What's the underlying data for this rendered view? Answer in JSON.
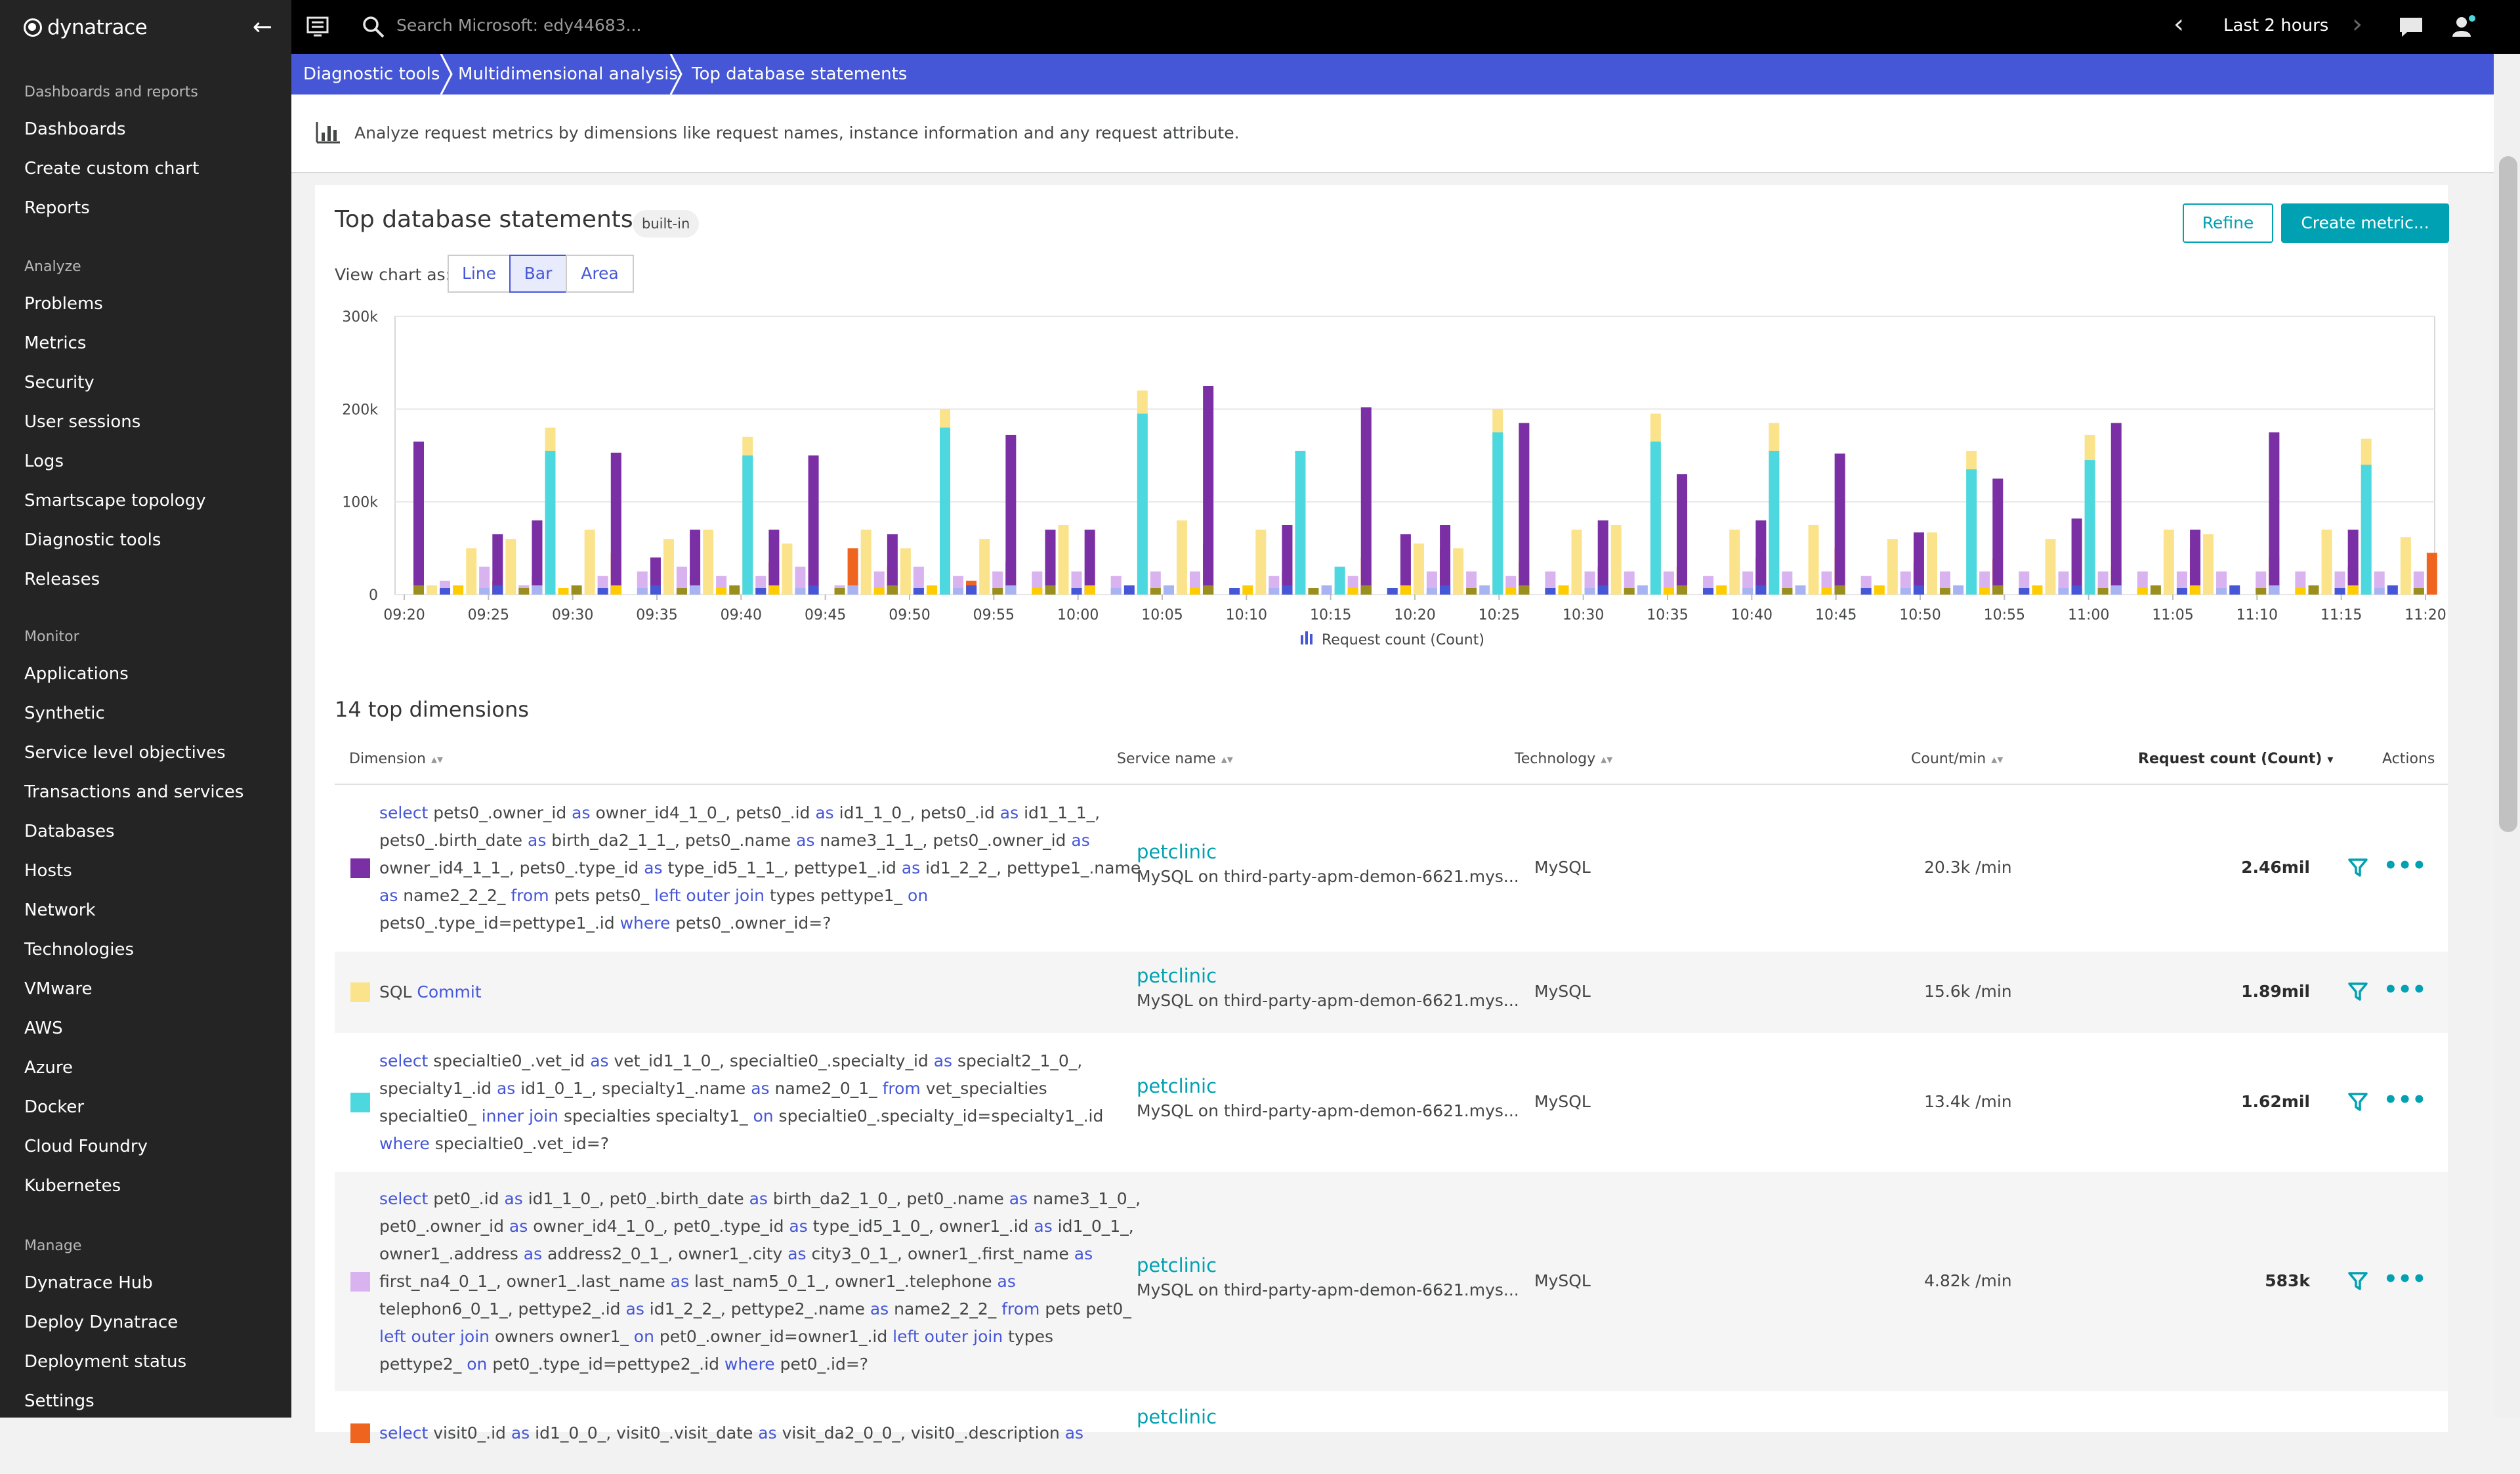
{
  "sidebar": {
    "logo": "dynatrace",
    "sections": [
      {
        "title": "Dashboards and reports",
        "items": [
          "Dashboards",
          "Create custom chart",
          "Reports"
        ]
      },
      {
        "title": "Analyze",
        "items": [
          "Problems",
          "Metrics",
          "Security",
          "User sessions",
          "Logs",
          "Smartscape topology",
          "Diagnostic tools",
          "Releases"
        ]
      },
      {
        "title": "Monitor",
        "items": [
          "Applications",
          "Synthetic",
          "Service level objectives",
          "Transactions and services",
          "Databases",
          "Hosts",
          "Network",
          "Technologies",
          "VMware",
          "AWS",
          "Azure",
          "Docker",
          "Cloud Foundry",
          "Kubernetes"
        ]
      },
      {
        "title": "Manage",
        "items": [
          "Dynatrace Hub",
          "Deploy Dynatrace",
          "Deployment status",
          "Settings"
        ]
      }
    ]
  },
  "topbar": {
    "search_placeholder": "Search Microsoft: edy44683...",
    "timeframe": "Last 2 hours"
  },
  "breadcrumb": [
    "Diagnostic tools",
    "Multidimensional analysis",
    "Top database statements"
  ],
  "info": "Analyze request metrics by dimensions like request names, instance information and any request attribute.",
  "card": {
    "title": "Top database statements",
    "badge": "built-in",
    "refine_label": "Refine",
    "create_label": "Create metric...",
    "view_label": "View chart as:",
    "view_options": [
      "Line",
      "Bar",
      "Area"
    ],
    "view_selected": "Bar"
  },
  "colors": {
    "purple": "#7b2fa5",
    "yellow": "#fbe38c",
    "cyan": "#4dd8e0",
    "lavender": "#d9b3f0",
    "orange": "#ef651f",
    "blue": "#4556d7",
    "lightblue": "#a8b4f2",
    "gold": "#ffcc00",
    "olive": "#9a8f1e",
    "teal": "#00a1b2",
    "lightpurple": "#b98fd9",
    "gray": "#c9c9c9",
    "peach": "#f7b58a",
    "green": "#54c27d"
  },
  "chart_data": {
    "type": "bar",
    "stacked": false,
    "y_ticks": [
      "0",
      "100k",
      "200k",
      "300k"
    ],
    "ylim": [
      0,
      300000
    ],
    "x_ticks": [
      "09:20",
      "09:25",
      "09:30",
      "09:35",
      "09:40",
      "09:45",
      "09:50",
      "09:55",
      "10:00",
      "10:05",
      "10:10",
      "10:15",
      "10:20",
      "10:25",
      "10:30",
      "10:35",
      "10:40",
      "10:45",
      "10:50",
      "10:55",
      "11:00",
      "11:05",
      "11:10",
      "11:15",
      "11:20"
    ],
    "legend": "Request count (Count)",
    "groups": [
      {
        "p": 165000,
        "y": 10000,
        "c": 0,
        "l": 15000,
        "o": 0
      },
      {
        "p": 0,
        "y": 50000,
        "c": 0,
        "l": 30000,
        "o": 15000
      },
      {
        "p": 65000,
        "y": 60000,
        "c": 0,
        "l": 10000,
        "o": 20000
      },
      {
        "p": 80000,
        "y": 180000,
        "c": 155000,
        "l": 0,
        "o": 0
      },
      {
        "p": 0,
        "y": 70000,
        "c": 0,
        "l": 20000,
        "o": 45000
      },
      {
        "p": 153000,
        "y": 0,
        "c": 0,
        "l": 25000,
        "o": 0
      },
      {
        "p": 40000,
        "y": 60000,
        "c": 0,
        "l": 30000,
        "o": 20000
      },
      {
        "p": 70000,
        "y": 70000,
        "c": 0,
        "l": 20000,
        "o": 0
      },
      {
        "p": 0,
        "y": 170000,
        "c": 150000,
        "l": 20000,
        "o": 35000
      },
      {
        "p": 70000,
        "y": 55000,
        "c": 0,
        "l": 30000,
        "o": 0
      },
      {
        "p": 150000,
        "y": 0,
        "c": 0,
        "l": 10000,
        "o": 50000
      },
      {
        "p": 0,
        "y": 70000,
        "c": 0,
        "l": 25000,
        "o": 30000
      },
      {
        "p": 65000,
        "y": 50000,
        "c": 0,
        "l": 30000,
        "o": 0
      },
      {
        "p": 0,
        "y": 200000,
        "c": 180000,
        "l": 20000,
        "o": 15000
      },
      {
        "p": 0,
        "y": 60000,
        "c": 0,
        "l": 25000,
        "o": 35000
      },
      {
        "p": 172000,
        "y": 0,
        "c": 0,
        "l": 25000,
        "o": 0
      },
      {
        "p": 70000,
        "y": 75000,
        "c": 0,
        "l": 25000,
        "o": 0
      },
      {
        "p": 70000,
        "y": 0,
        "c": 0,
        "l": 20000,
        "o": 0
      },
      {
        "p": 0,
        "y": 220000,
        "c": 195000,
        "l": 25000,
        "o": 0
      },
      {
        "p": 0,
        "y": 80000,
        "c": 0,
        "l": 25000,
        "o": 55000
      },
      {
        "p": 225000,
        "y": 0,
        "c": 0,
        "l": 0,
        "o": 0
      },
      {
        "p": 0,
        "y": 70000,
        "c": 0,
        "l": 20000,
        "o": 25000
      },
      {
        "p": 75000,
        "y": 55000,
        "c": 155000,
        "l": 0,
        "o": 0
      },
      {
        "p": 0,
        "y": 0,
        "c": 30000,
        "l": 20000,
        "o": 40000
      },
      {
        "p": 202000,
        "y": 0,
        "c": 0,
        "l": 0,
        "o": 0
      },
      {
        "p": 65000,
        "y": 55000,
        "c": 0,
        "l": 25000,
        "o": 50000
      },
      {
        "p": 75000,
        "y": 50000,
        "c": 0,
        "l": 25000,
        "o": 0
      },
      {
        "p": 0,
        "y": 200000,
        "c": 175000,
        "l": 20000,
        "o": 35000
      },
      {
        "p": 185000,
        "y": 0,
        "c": 0,
        "l": 25000,
        "o": 0
      },
      {
        "p": 0,
        "y": 70000,
        "c": 0,
        "l": 25000,
        "o": 30000
      },
      {
        "p": 80000,
        "y": 75000,
        "c": 0,
        "l": 25000,
        "o": 0
      },
      {
        "p": 0,
        "y": 195000,
        "c": 165000,
        "l": 25000,
        "o": 30000
      },
      {
        "p": 130000,
        "y": 0,
        "c": 0,
        "l": 20000,
        "o": 0
      },
      {
        "p": 0,
        "y": 70000,
        "c": 0,
        "l": 25000,
        "o": 40000
      },
      {
        "p": 80000,
        "y": 185000,
        "c": 155000,
        "l": 25000,
        "o": 0
      },
      {
        "p": 0,
        "y": 75000,
        "c": 0,
        "l": 25000,
        "o": 50000
      },
      {
        "p": 152000,
        "y": 0,
        "c": 0,
        "l": 20000,
        "o": 0
      },
      {
        "p": 0,
        "y": 60000,
        "c": 0,
        "l": 25000,
        "o": 35000
      },
      {
        "p": 67000,
        "y": 67000,
        "c": 0,
        "l": 25000,
        "o": 0
      },
      {
        "p": 0,
        "y": 155000,
        "c": 135000,
        "l": 25000,
        "o": 38000
      },
      {
        "p": 125000,
        "y": 0,
        "c": 0,
        "l": 25000,
        "o": 0
      },
      {
        "p": 0,
        "y": 60000,
        "c": 0,
        "l": 25000,
        "o": 0
      },
      {
        "p": 82000,
        "y": 172000,
        "c": 145000,
        "l": 25000,
        "o": 30000
      },
      {
        "p": 185000,
        "y": 0,
        "c": 0,
        "l": 25000,
        "o": 0
      },
      {
        "p": 0,
        "y": 70000,
        "c": 0,
        "l": 25000,
        "o": 50000
      },
      {
        "p": 70000,
        "y": 65000,
        "c": 0,
        "l": 25000,
        "o": 0
      },
      {
        "p": 0,
        "y": 0,
        "c": 0,
        "l": 25000,
        "o": 40000
      },
      {
        "p": 175000,
        "y": 0,
        "c": 0,
        "l": 25000,
        "o": 0
      },
      {
        "p": 0,
        "y": 70000,
        "c": 0,
        "l": 25000,
        "o": 30000
      },
      {
        "p": 70000,
        "y": 168000,
        "c": 140000,
        "l": 25000,
        "o": 0
      },
      {
        "p": 0,
        "y": 62000,
        "c": 0,
        "l": 25000,
        "o": 45000
      }
    ]
  },
  "dimensions_heading": "14 top dimensions",
  "table": {
    "headers": {
      "dimension": "Dimension",
      "service": "Service name",
      "technology": "Technology",
      "count": "Count/min",
      "request": "Request count (Count)",
      "actions": "Actions"
    },
    "rows": [
      {
        "color": "#7b2fa5",
        "lines": [
          [
            [
              "k",
              "select"
            ],
            [
              "t",
              " pets0_.owner_id "
            ],
            [
              "k",
              "as"
            ],
            [
              "t",
              " owner_id4_1_0_, pets0_.id "
            ],
            [
              "k",
              "as"
            ],
            [
              "t",
              " id1_1_0_, pets0_.id "
            ],
            [
              "k",
              "as"
            ],
            [
              "t",
              " id1_1_1_,"
            ]
          ],
          [
            [
              "t",
              "pets0_.birth_date "
            ],
            [
              "k",
              "as"
            ],
            [
              "t",
              " birth_da2_1_1_, pets0_.name "
            ],
            [
              "k",
              "as"
            ],
            [
              "t",
              " name3_1_1_, pets0_.owner_id "
            ],
            [
              "k",
              "as"
            ]
          ],
          [
            [
              "t",
              "owner_id4_1_1_, pets0_.type_id "
            ],
            [
              "k",
              "as"
            ],
            [
              "t",
              " type_id5_1_1_, pettype1_.id "
            ],
            [
              "k",
              "as"
            ],
            [
              "t",
              " id1_2_2_, pettype1_.name"
            ]
          ],
          [
            [
              "k",
              "as"
            ],
            [
              "t",
              " name2_2_2_ "
            ],
            [
              "k",
              "from"
            ],
            [
              "t",
              " pets pets0_ "
            ],
            [
              "k",
              "left outer join"
            ],
            [
              "t",
              " types pettype1_ "
            ],
            [
              "k",
              "on"
            ]
          ],
          [
            [
              "t",
              "pets0_.type_id=pettype1_.id "
            ],
            [
              "k",
              "where"
            ],
            [
              "t",
              " pets0_.owner_id=?"
            ]
          ]
        ],
        "service": "petclinic",
        "service_sub": "MySQL on third-party-apm-demon-6621.mys...",
        "technology": "MySQL",
        "count_per_min": "20.3k /min",
        "request_count": "2.46mil"
      },
      {
        "color": "#fbe38c",
        "lines": [
          [
            [
              "t",
              "SQL "
            ],
            [
              "k",
              "Commit"
            ]
          ]
        ],
        "service": "petclinic",
        "service_sub": "MySQL on third-party-apm-demon-6621.mys...",
        "technology": "MySQL",
        "count_per_min": "15.6k /min",
        "request_count": "1.89mil"
      },
      {
        "color": "#4dd8e0",
        "lines": [
          [
            [
              "k",
              "select"
            ],
            [
              "t",
              " specialtie0_.vet_id "
            ],
            [
              "k",
              "as"
            ],
            [
              "t",
              " vet_id1_1_0_, specialtie0_.specialty_id "
            ],
            [
              "k",
              "as"
            ],
            [
              "t",
              " specialt2_1_0_,"
            ]
          ],
          [
            [
              "t",
              "specialty1_.id "
            ],
            [
              "k",
              "as"
            ],
            [
              "t",
              " id1_0_1_, specialty1_.name "
            ],
            [
              "k",
              "as"
            ],
            [
              "t",
              " name2_0_1_ "
            ],
            [
              "k",
              "from"
            ],
            [
              "t",
              " vet_specialties"
            ]
          ],
          [
            [
              "t",
              "specialtie0_ "
            ],
            [
              "k",
              "inner join"
            ],
            [
              "t",
              " specialties specialty1_ "
            ],
            [
              "k",
              "on"
            ],
            [
              "t",
              " specialtie0_.specialty_id=specialty1_.id"
            ]
          ],
          [
            [
              "k",
              "where"
            ],
            [
              "t",
              " specialtie0_.vet_id=?"
            ]
          ]
        ],
        "service": "petclinic",
        "service_sub": "MySQL on third-party-apm-demon-6621.mys...",
        "technology": "MySQL",
        "count_per_min": "13.4k /min",
        "request_count": "1.62mil"
      },
      {
        "color": "#d9b3f0",
        "lines": [
          [
            [
              "k",
              "select"
            ],
            [
              "t",
              " pet0_.id "
            ],
            [
              "k",
              "as"
            ],
            [
              "t",
              " id1_1_0_, pet0_.birth_date "
            ],
            [
              "k",
              "as"
            ],
            [
              "t",
              " birth_da2_1_0_, pet0_.name "
            ],
            [
              "k",
              "as"
            ],
            [
              "t",
              " name3_1_0_,"
            ]
          ],
          [
            [
              "t",
              "pet0_.owner_id "
            ],
            [
              "k",
              "as"
            ],
            [
              "t",
              " owner_id4_1_0_, pet0_.type_id "
            ],
            [
              "k",
              "as"
            ],
            [
              "t",
              " type_id5_1_0_, owner1_.id "
            ],
            [
              "k",
              "as"
            ],
            [
              "t",
              " id1_0_1_,"
            ]
          ],
          [
            [
              "t",
              "owner1_.address "
            ],
            [
              "k",
              "as"
            ],
            [
              "t",
              " address2_0_1_, owner1_.city "
            ],
            [
              "k",
              "as"
            ],
            [
              "t",
              " city3_0_1_, owner1_.first_name "
            ],
            [
              "k",
              "as"
            ]
          ],
          [
            [
              "t",
              "first_na4_0_1_, owner1_.last_name "
            ],
            [
              "k",
              "as"
            ],
            [
              "t",
              " last_nam5_0_1_, owner1_.telephone "
            ],
            [
              "k",
              "as"
            ]
          ],
          [
            [
              "t",
              "telephon6_0_1_, pettype2_.id "
            ],
            [
              "k",
              "as"
            ],
            [
              "t",
              " id1_2_2_, pettype2_.name "
            ],
            [
              "k",
              "as"
            ],
            [
              "t",
              " name2_2_2_ "
            ],
            [
              "k",
              "from"
            ],
            [
              "t",
              " pets pet0_"
            ]
          ],
          [
            [
              "k",
              "left outer join"
            ],
            [
              "t",
              " owners owner1_ "
            ],
            [
              "k",
              "on"
            ],
            [
              "t",
              " pet0_.owner_id=owner1_.id "
            ],
            [
              "k",
              "left outer join"
            ],
            [
              "t",
              " types"
            ]
          ],
          [
            [
              "t",
              "pettype2_ "
            ],
            [
              "k",
              "on"
            ],
            [
              "t",
              " pet0_.type_id=pettype2_.id "
            ],
            [
              "k",
              "where"
            ],
            [
              "t",
              " pet0_.id=?"
            ]
          ]
        ],
        "service": "petclinic",
        "service_sub": "MySQL on third-party-apm-demon-6621.mys...",
        "technology": "MySQL",
        "count_per_min": "4.82k /min",
        "request_count": "583k"
      },
      {
        "color": "#ef651f",
        "lines": [
          [
            [
              "k",
              "select"
            ],
            [
              "t",
              " visit0_.id "
            ],
            [
              "k",
              "as"
            ],
            [
              "t",
              " id1_0_0_, visit0_.visit_date "
            ],
            [
              "k",
              "as"
            ],
            [
              "t",
              " visit_da2_0_0_, visit0_.description "
            ],
            [
              "k",
              "as"
            ]
          ]
        ],
        "service": "petclinic",
        "service_sub": "",
        "technology": "",
        "count_per_min": "",
        "request_count": ""
      }
    ]
  }
}
